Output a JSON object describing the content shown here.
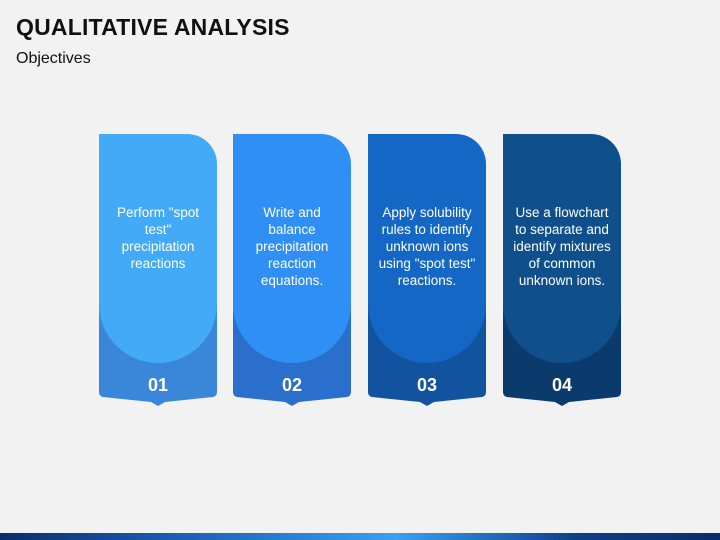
{
  "slide": {
    "title": "QUALITATIVE ANALYSIS",
    "subtitle": "Objectives"
  },
  "colors": {
    "background": "#f2f2f2",
    "card_1": {
      "top": "#42aaf6",
      "bottom": "#3a86d9"
    },
    "card_2": {
      "top": "#2f8ff5",
      "bottom": "#2a6fcc"
    },
    "card_3": {
      "top": "#1467c4",
      "bottom": "#11539f"
    },
    "card_4": {
      "top": "#0f4f8c",
      "bottom": "#0b3a6c"
    }
  },
  "objectives": [
    {
      "number": "01",
      "text": "Perform \"spot test\" precipitation reactions"
    },
    {
      "number": "02",
      "text": "Write and balance precipitation reaction equations."
    },
    {
      "number": "03",
      "text": "Apply solubility rules to identify unknown ions using \"spot test\" reactions."
    },
    {
      "number": "04",
      "text": "Use a flowchart to separate and identify mixtures of common unknown ions."
    }
  ]
}
